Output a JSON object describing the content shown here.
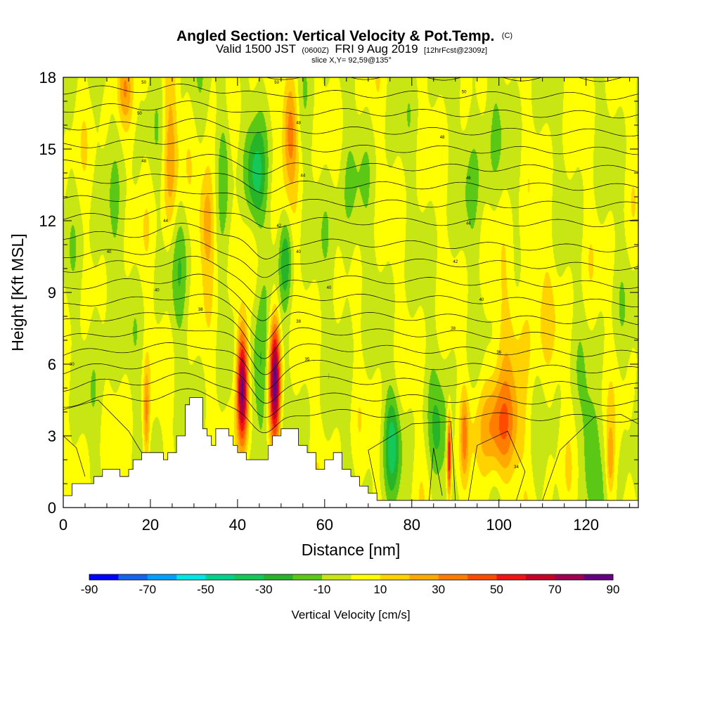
{
  "chart_data": {
    "type": "heatmap",
    "title": "Angled Section: Vertical Velocity & Pot.Temp.",
    "title_units": "(C)",
    "subtitle": {
      "valid_prefix": "Valid 1500 JST",
      "utc": "(0600Z)",
      "date": "FRI 9 Aug 2019",
      "forecast": "[12hrFcst@2309z]"
    },
    "slice": "slice X,Y= 92,59@135°",
    "xlabel": "Distance [nm]",
    "ylabel": "Height [Kft MSL]",
    "xlim": [
      0,
      132
    ],
    "ylim": [
      0,
      18
    ],
    "x_ticks": [
      0,
      20,
      40,
      60,
      80,
      100,
      120
    ],
    "y_ticks": [
      0,
      3,
      6,
      9,
      12,
      15,
      18
    ],
    "colorbar": {
      "label": "Vertical Velocity [cm/s]",
      "tick_labels": [
        "-90",
        "-70",
        "-50",
        "-30",
        "-10",
        "10",
        "30",
        "50",
        "70",
        "90"
      ],
      "boundaries": [
        -90,
        -80,
        -70,
        -60,
        -50,
        -40,
        -30,
        -20,
        -10,
        0,
        10,
        20,
        30,
        40,
        50,
        60,
        70,
        80,
        90
      ],
      "colors": [
        "#0000ff",
        "#1464f0",
        "#00a0ff",
        "#00e6e6",
        "#00d28c",
        "#14c85a",
        "#28b428",
        "#5ac814",
        "#c8e614",
        "#ffff00",
        "#ffd200",
        "#ffaa00",
        "#ff7d00",
        "#ff4b00",
        "#f01414",
        "#c80028",
        "#a00050",
        "#640082"
      ]
    },
    "terrain": [
      [
        0,
        0.5
      ],
      [
        2,
        1.0
      ],
      [
        5,
        1.0
      ],
      [
        7,
        1.3
      ],
      [
        9,
        1.6
      ],
      [
        11,
        1.6
      ],
      [
        13,
        1.3
      ],
      [
        15,
        1.6
      ],
      [
        16,
        2.0
      ],
      [
        18,
        2.3
      ],
      [
        20,
        2.3
      ],
      [
        22,
        2.3
      ],
      [
        23,
        2.0
      ],
      [
        24,
        2.3
      ],
      [
        26,
        3.0
      ],
      [
        28,
        4.3
      ],
      [
        29,
        4.6
      ],
      [
        31,
        4.6
      ],
      [
        32,
        3.3
      ],
      [
        33,
        3.0
      ],
      [
        34,
        2.6
      ],
      [
        35,
        3.3
      ],
      [
        37,
        3.3
      ],
      [
        38,
        3.0
      ],
      [
        39,
        2.6
      ],
      [
        40,
        2.3
      ],
      [
        42,
        2.0
      ],
      [
        45,
        2.0
      ],
      [
        47,
        2.6
      ],
      [
        48,
        3.0
      ],
      [
        50,
        3.3
      ],
      [
        53,
        3.3
      ],
      [
        54,
        2.6
      ],
      [
        56,
        2.3
      ],
      [
        58,
        1.6
      ],
      [
        60,
        2.0
      ],
      [
        62,
        2.3
      ],
      [
        64,
        1.6
      ],
      [
        66,
        1.3
      ],
      [
        68,
        0.9
      ],
      [
        70,
        0.6
      ],
      [
        72,
        0.3
      ],
      [
        75,
        0.3
      ],
      [
        132,
        0.3
      ]
    ],
    "field_features": [
      {
        "x": 41,
        "z": 5.0,
        "sx": 0.9,
        "sz": 1.8,
        "w": 90
      },
      {
        "x": 48.5,
        "z": 5.3,
        "sx": 0.9,
        "sz": 1.8,
        "w": 85
      },
      {
        "x": 19,
        "z": 3.8,
        "sx": 0.5,
        "sz": 1.5,
        "w": 30
      },
      {
        "x": 45,
        "z": 5.5,
        "sx": 1.6,
        "sz": 2.0,
        "w": -25
      },
      {
        "x": 44,
        "z": 13.8,
        "sx": 1.6,
        "sz": 1.5,
        "w": -30
      },
      {
        "x": 51,
        "z": 10.5,
        "sx": 1.0,
        "sz": 1.2,
        "w": -25
      },
      {
        "x": 52,
        "z": 16.0,
        "sx": 1.2,
        "sz": 1.6,
        "w": 35
      },
      {
        "x": 33,
        "z": 12.0,
        "sx": 1.4,
        "sz": 1.6,
        "w": 30
      },
      {
        "x": 24.5,
        "z": 15.0,
        "sx": 1.2,
        "sz": 2.5,
        "w": 25
      },
      {
        "x": 27,
        "z": 10.0,
        "sx": 1.5,
        "sz": 2.0,
        "w": -12
      },
      {
        "x": 37,
        "z": 15.0,
        "sx": 1.2,
        "sz": 2.0,
        "w": -15
      },
      {
        "x": 100,
        "z": 3.2,
        "sx": 3.2,
        "sz": 1.5,
        "w": 40
      },
      {
        "x": 88.5,
        "z": 2.2,
        "sx": 0.35,
        "sz": 1.2,
        "w": 65
      },
      {
        "x": 92,
        "z": 3.0,
        "sx": 0.6,
        "sz": 1.2,
        "w": 25
      },
      {
        "x": 75.5,
        "z": 2.7,
        "sx": 1.3,
        "sz": 1.5,
        "w": -28
      },
      {
        "x": 86,
        "z": 2.8,
        "sx": 1.5,
        "sz": 1.5,
        "w": -18
      },
      {
        "x": 121,
        "z": 2.5,
        "sx": 1.5,
        "sz": 1.8,
        "w": -18
      },
      {
        "x": 125.5,
        "z": 2.0,
        "sx": 0.6,
        "sz": 1.0,
        "w": 25
      },
      {
        "x": 14,
        "z": 17.5,
        "sx": 1.2,
        "sz": 1.0,
        "w": 20
      },
      {
        "x": 105,
        "z": 8.0,
        "sx": 5.0,
        "sz": 2.5,
        "w": 12
      },
      {
        "x": 96,
        "z": 15.0,
        "sx": 3.0,
        "sz": 3.0,
        "w": -10
      },
      {
        "x": 10,
        "z": 9.0,
        "sx": 2.0,
        "sz": 2.5,
        "w": -10
      },
      {
        "x": 65,
        "z": 12.0,
        "sx": 3.0,
        "sz": 3.0,
        "w": -8
      }
    ],
    "contour_labels": [
      {
        "x": 2,
        "z": 6.0,
        "text": "30"
      },
      {
        "x": 10.5,
        "z": 10.7,
        "text": "40"
      },
      {
        "x": 21.5,
        "z": 9.1,
        "text": "40"
      },
      {
        "x": 31.5,
        "z": 8.3,
        "text": "38"
      },
      {
        "x": 23.5,
        "z": 12.0,
        "text": "44"
      },
      {
        "x": 18.5,
        "z": 14.5,
        "text": "48"
      },
      {
        "x": 17.5,
        "z": 16.5,
        "text": "50"
      },
      {
        "x": 18.5,
        "z": 17.8,
        "text": "50"
      },
      {
        "x": 49,
        "z": 17.8,
        "text": "50"
      },
      {
        "x": 54,
        "z": 16.1,
        "text": "48"
      },
      {
        "x": 55,
        "z": 13.9,
        "text": "44"
      },
      {
        "x": 49.5,
        "z": 11.8,
        "text": "42"
      },
      {
        "x": 54,
        "z": 10.7,
        "text": "40"
      },
      {
        "x": 61,
        "z": 9.2,
        "text": "40"
      },
      {
        "x": 54,
        "z": 7.8,
        "text": "38"
      },
      {
        "x": 56,
        "z": 6.2,
        "text": "35"
      },
      {
        "x": 92,
        "z": 17.4,
        "text": "50"
      },
      {
        "x": 87,
        "z": 15.5,
        "text": "48"
      },
      {
        "x": 93,
        "z": 13.8,
        "text": "46"
      },
      {
        "x": 93,
        "z": 11.9,
        "text": "44"
      },
      {
        "x": 90,
        "z": 10.3,
        "text": "42"
      },
      {
        "x": 96,
        "z": 8.7,
        "text": "40"
      },
      {
        "x": 89.5,
        "z": 7.5,
        "text": "38"
      },
      {
        "x": 100,
        "z": 6.5,
        "text": "36"
      },
      {
        "x": 104,
        "z": 1.7,
        "text": "34"
      }
    ]
  }
}
